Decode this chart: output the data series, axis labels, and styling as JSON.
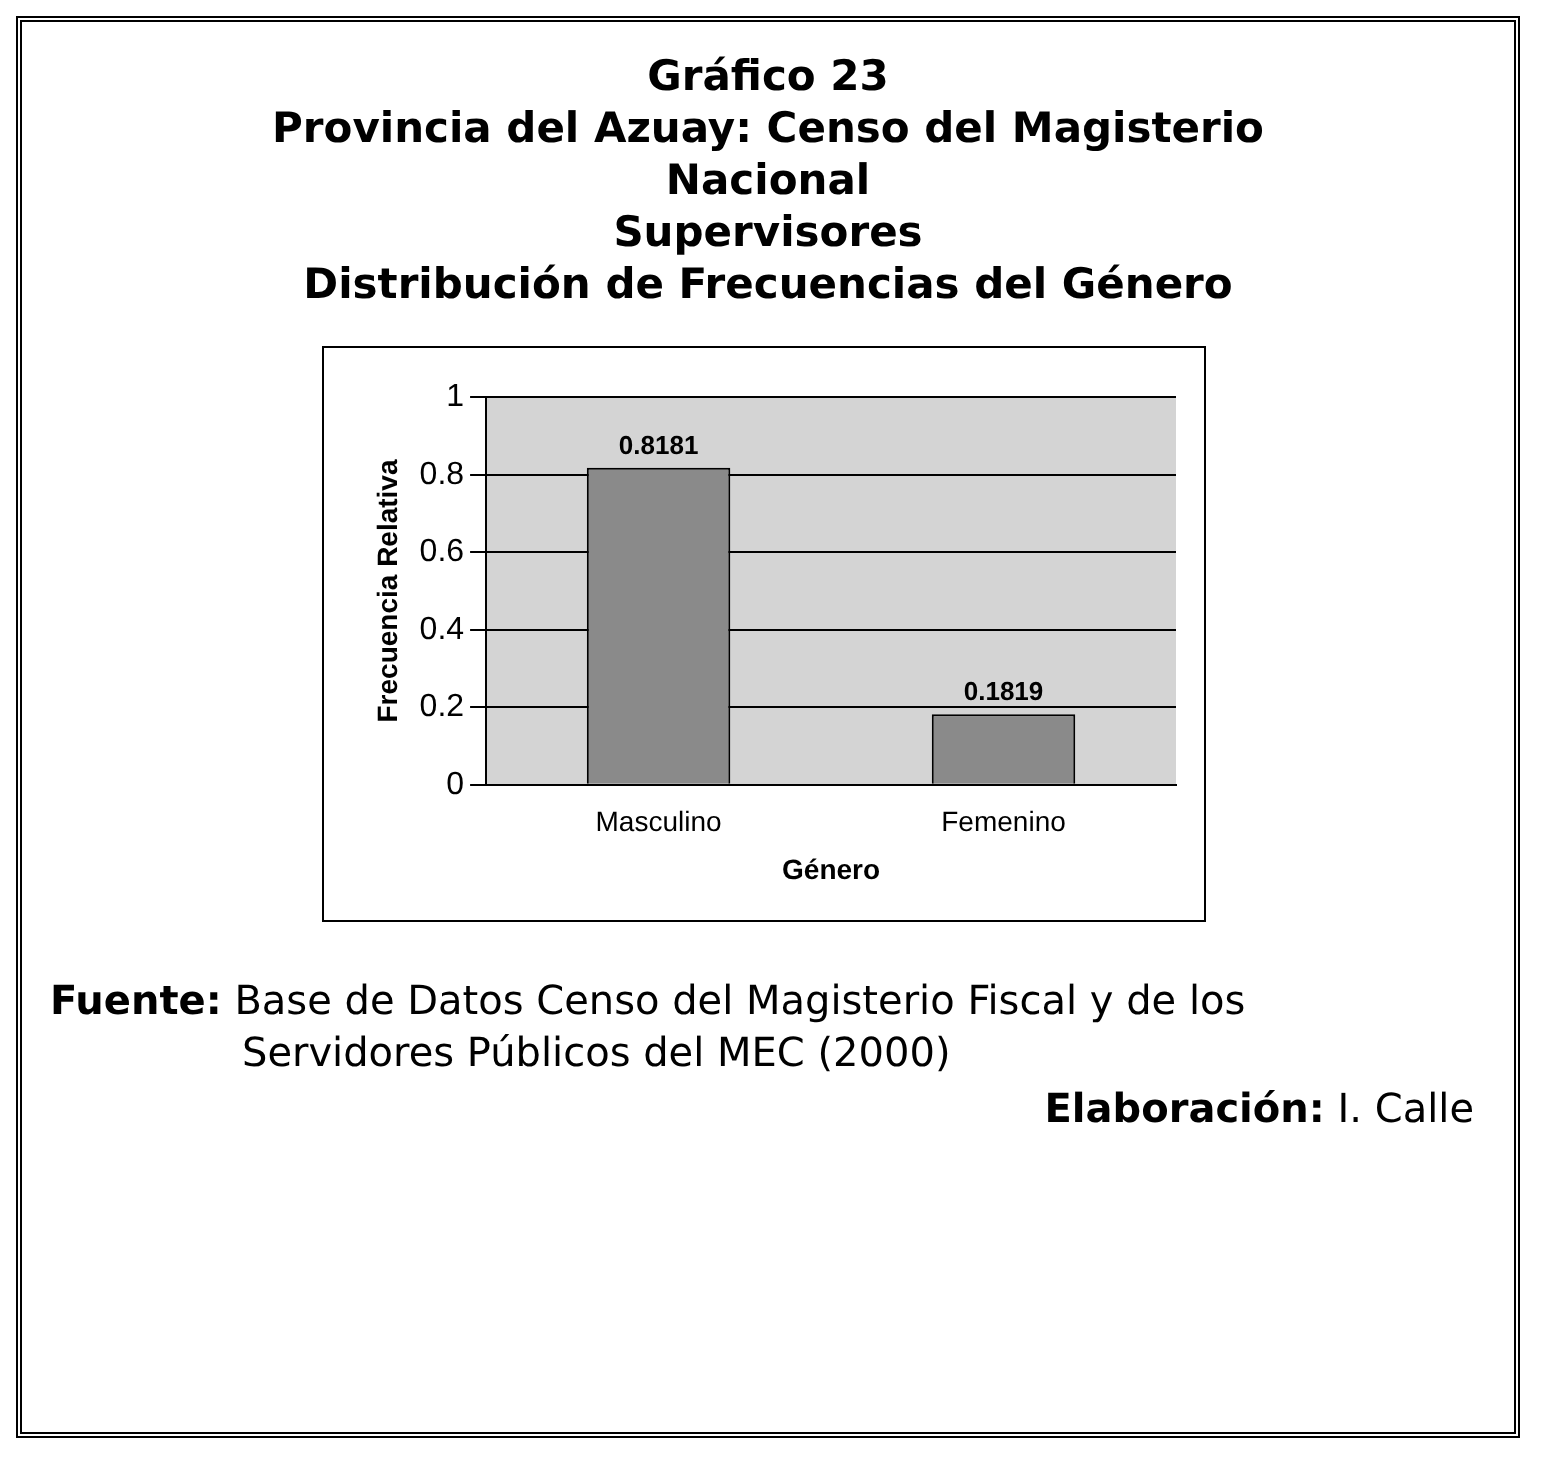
{
  "chart_data": {
    "type": "bar",
    "title": "Gráfico 23\nProvincia del Azuay: Censo del Magisterio\nNacional\nSupervisores\nDistribución de Frecuencias del Género",
    "xlabel": "Género",
    "ylabel": "Frecuencia Relativa",
    "categories": [
      "Masculino",
      "Femenino"
    ],
    "series": [
      {
        "color": "#8a8a8a",
        "values": [
          0.8181,
          0.1819
        ]
      }
    ],
    "ylim": [
      0,
      1
    ],
    "yticks": [
      0,
      0.2,
      0.4,
      0.6,
      0.8,
      1
    ],
    "grid": "y",
    "legend": false,
    "data_labels": true,
    "annotations": [
      "Fuente: Base de Datos Censo del Magisterio Fiscal y de los Servidores Públicos del MEC (2000)",
      "Elaboración: I. Calle"
    ]
  }
}
